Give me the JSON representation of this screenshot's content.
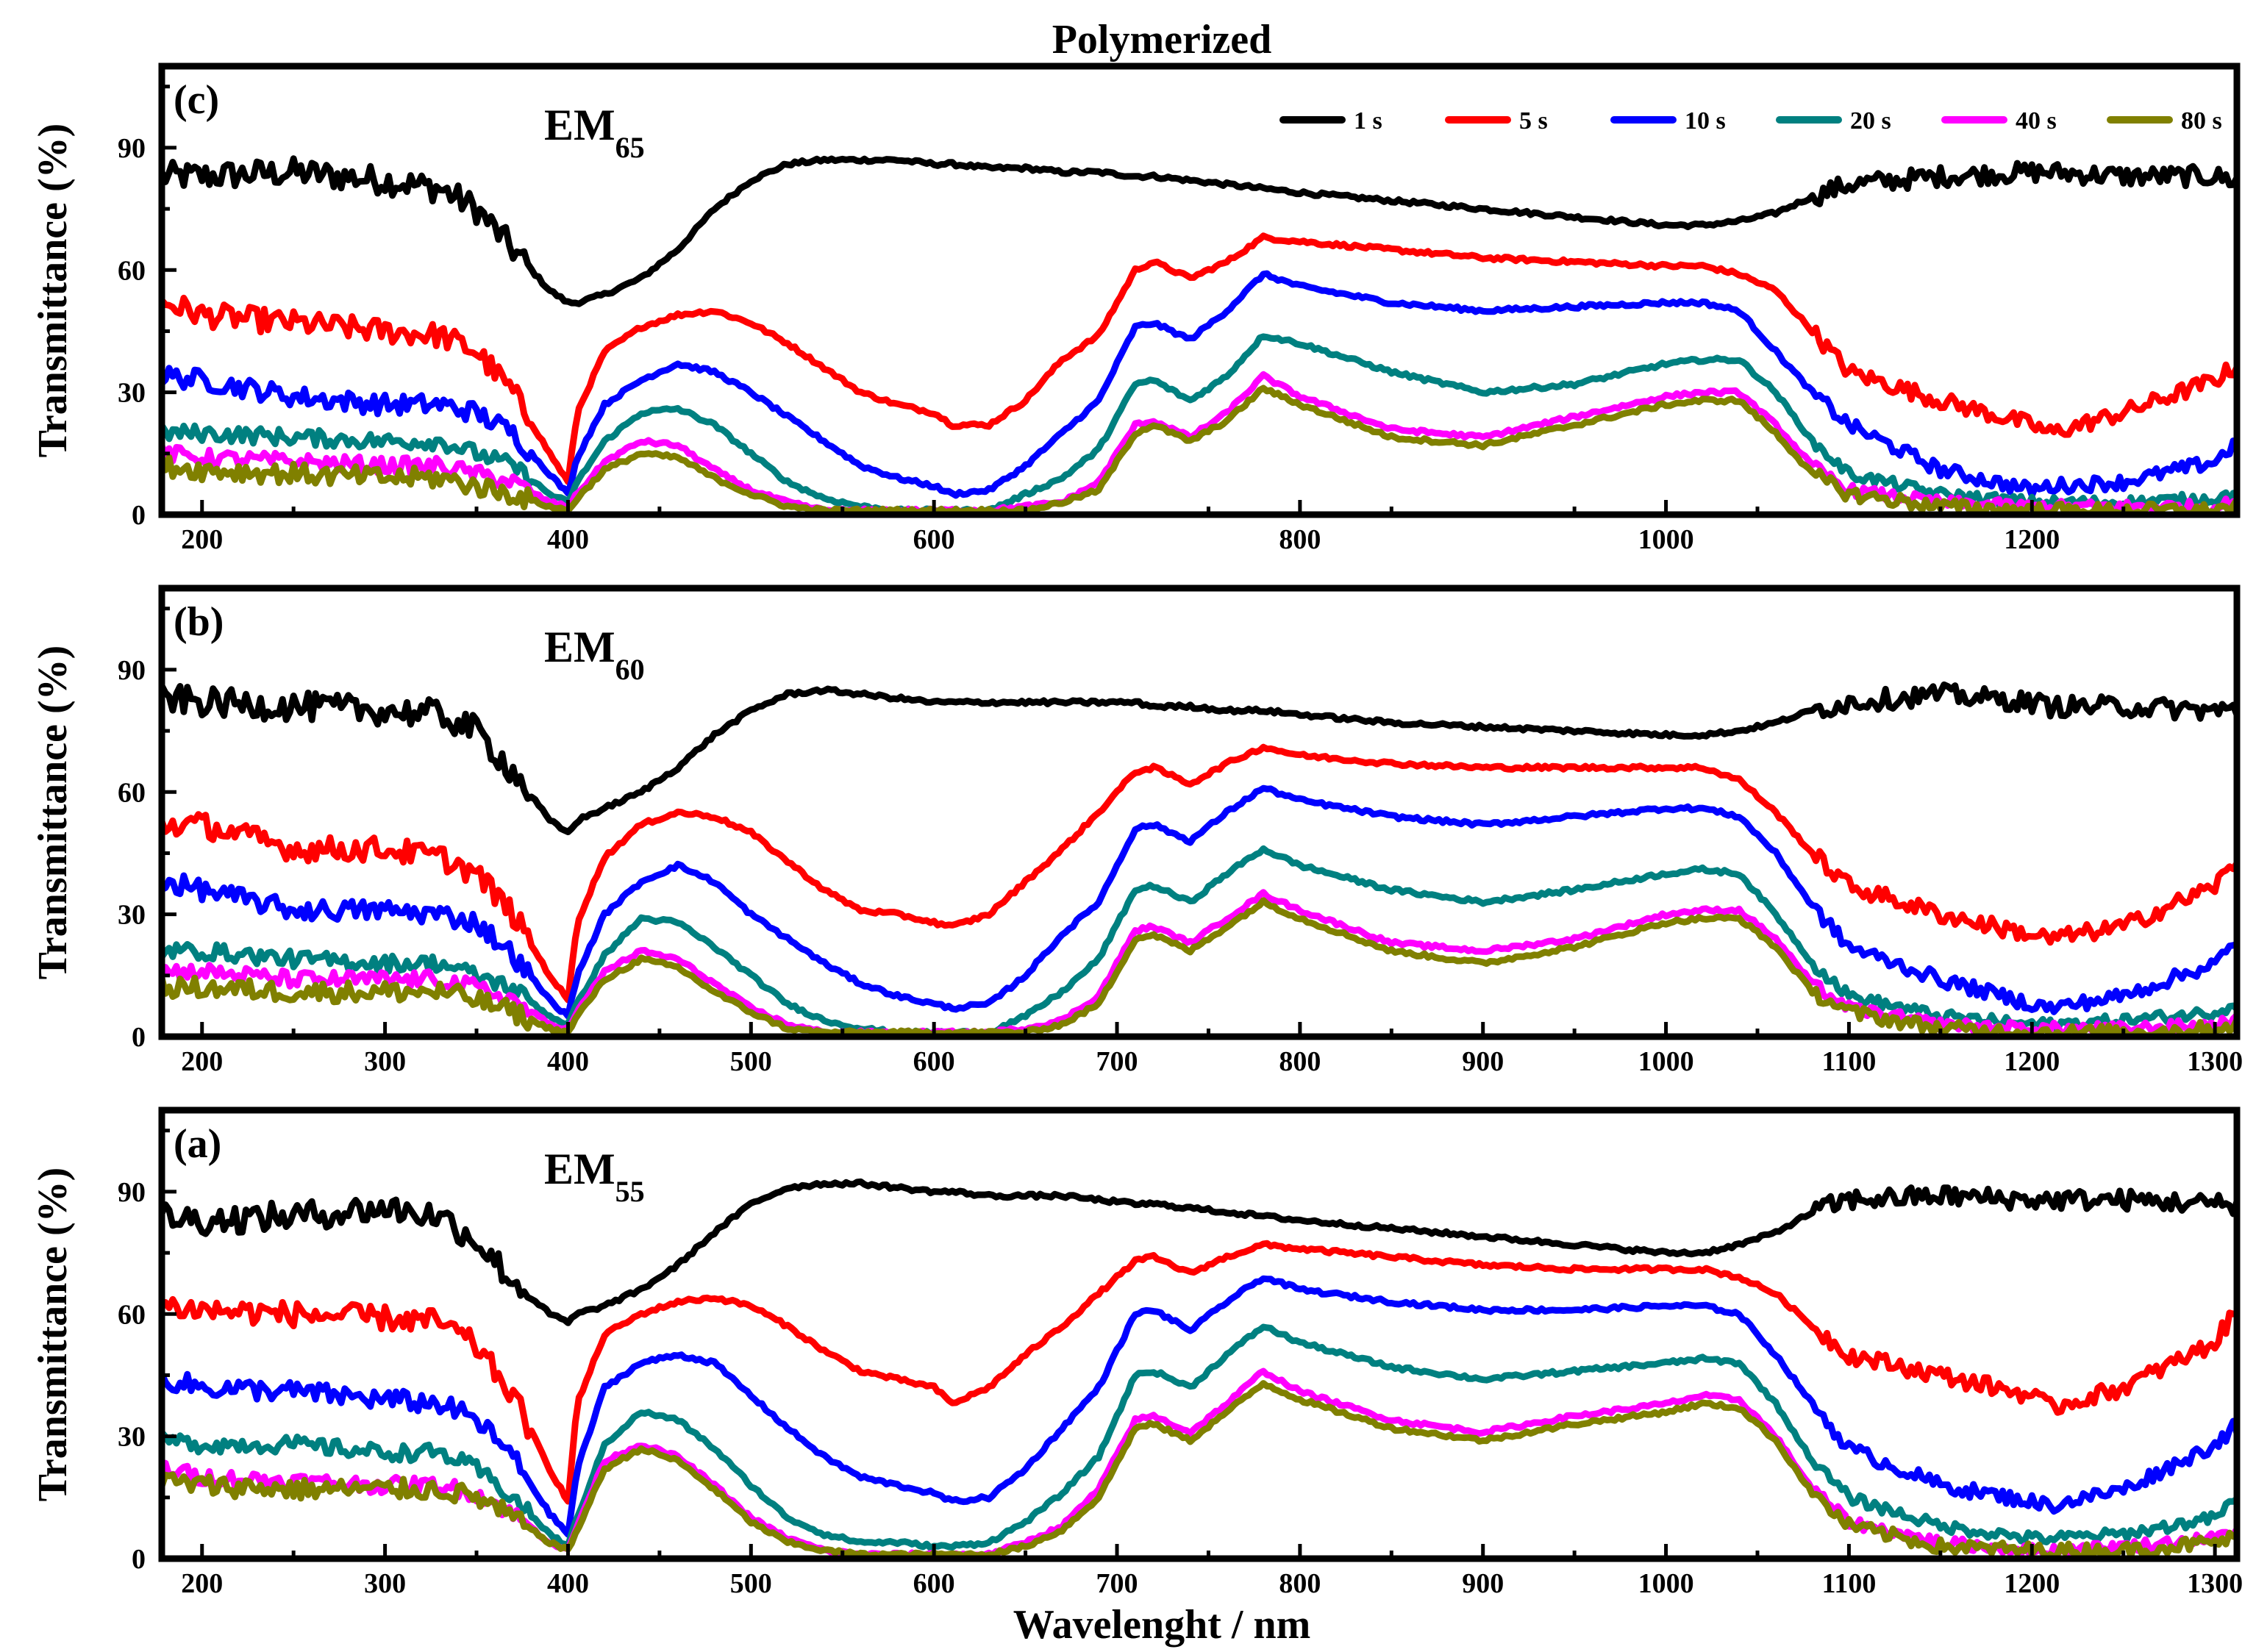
{
  "chart_data": {
    "type": "line",
    "title": "Polymerized",
    "xlabel": "Wavelenght / nm",
    "ylabel": "Transmittance (%)",
    "xlim": [
      178,
      1312
    ],
    "ylim": [
      0,
      110
    ],
    "yticks": [
      0,
      30,
      60,
      90
    ],
    "legend": {
      "placement": "top-right of top panel",
      "entries": [
        {
          "name": "1 s",
          "color": "#000000"
        },
        {
          "name": "5 s",
          "color": "#ff0000"
        },
        {
          "name": "10 s",
          "color": "#0000ff"
        },
        {
          "name": "20 s",
          "color": "#008080"
        },
        {
          "name": "40 s",
          "color": "#ff00ff"
        },
        {
          "name": "80 s",
          "color": "#808000"
        }
      ]
    },
    "x": [
      180,
      200,
      250,
      300,
      330,
      350,
      370,
      390,
      400,
      405,
      420,
      440,
      460,
      480,
      500,
      520,
      540,
      560,
      580,
      600,
      610,
      630,
      650,
      670,
      690,
      710,
      720,
      740,
      760,
      780,
      800,
      850,
      900,
      950,
      1000,
      1020,
      1040,
      1060,
      1080,
      1100,
      1150,
      1200,
      1210,
      1250,
      1300,
      1310
    ],
    "panels": [
      {
        "label": "(c)",
        "sample": {
          "base": "EM",
          "sub": "65"
        },
        "xticks": [
          200,
          400,
          600,
          800,
          1000,
          1200
        ],
        "series": [
          {
            "name": "1 s",
            "noise": 3.5,
            "values": [
              83,
              83,
              84,
              82,
              80,
              75,
              65,
              55,
              52,
              52,
              54,
              58,
              65,
              75,
              82,
              86,
              87,
              87,
              87,
              86,
              86,
              85,
              85,
              84,
              84,
              83,
              83,
              82,
              81,
              80,
              79,
              77,
              75,
              73,
              71,
              71,
              72,
              74,
              78,
              81,
              83,
              84,
              84,
              83,
              83,
              82
            ]
          },
          {
            "name": "5 s",
            "noise": 3.0,
            "values": [
              52,
              49,
              47,
              45,
              44,
              40,
              30,
              15,
              8,
              25,
              40,
              46,
              49,
              50,
              47,
              42,
              36,
              30,
              27,
              25,
              22,
              22,
              28,
              38,
              44,
              60,
              62,
              58,
              62,
              68,
              67,
              65,
              63,
              62,
              61,
              61,
              59,
              55,
              45,
              35,
              28,
              22,
              20,
              25,
              33,
              36
            ]
          },
          {
            "name": "10 s",
            "noise": 2.5,
            "values": [
              34,
              33,
              29,
              27,
              27,
              25,
              20,
              10,
              5,
              14,
              27,
              33,
              37,
              35,
              30,
              24,
              18,
              12,
              9,
              7,
              5,
              6,
              12,
              20,
              28,
              46,
              47,
              43,
              50,
              59,
              56,
              52,
              50,
              51,
              52,
              52,
              50,
              40,
              30,
              22,
              11,
              6,
              7,
              8,
              13,
              17
            ]
          },
          {
            "name": "20 s",
            "noise": 2.0,
            "values": [
              20,
              20,
              19,
              18,
              18,
              15,
              12,
              5,
              3,
              8,
              18,
              25,
              26,
              22,
              15,
              8,
              4,
              2,
              1,
              1,
              1,
              1,
              5,
              9,
              16,
              32,
              33,
              28,
              34,
              44,
              42,
              35,
              30,
              32,
              37,
              38,
              38,
              30,
              18,
              10,
              5,
              3,
              3,
              3,
              4,
              5
            ]
          },
          {
            "name": "40 s",
            "noise": 2.0,
            "values": [
              15,
              14,
              13,
              12,
              12,
              10,
              8,
              3,
              2,
              5,
              13,
              18,
              17,
              11,
              6,
              3,
              1,
              1,
              1,
              1,
              1,
              1,
              2,
              3,
              8,
              22,
              23,
              19,
              25,
              34,
              29,
              21,
              19,
              24,
              29,
              30,
              30,
              22,
              12,
              6,
              3,
              2,
              2,
              2,
              2,
              3
            ]
          },
          {
            "name": "80 s",
            "noise": 2.5,
            "values": [
              12,
              11,
              10,
              9,
              9,
              7,
              5,
              2,
              1,
              4,
              11,
              15,
              14,
              9,
              5,
              2,
              1,
              1,
              1,
              1,
              1,
              1,
              1,
              3,
              6,
              20,
              22,
              18,
              23,
              31,
              27,
              19,
              17,
              22,
              27,
              28,
              28,
              20,
              10,
              5,
              2,
              1,
              1,
              1,
              1,
              2
            ]
          }
        ]
      },
      {
        "label": "(b)",
        "sample": {
          "base": "EM",
          "sub": "60"
        },
        "xticks": [
          200,
          300,
          400,
          500,
          600,
          700,
          800,
          900,
          1000,
          1100,
          1200,
          1300
        ],
        "series": [
          {
            "name": "1 s",
            "noise": 3.5,
            "values": [
              83,
              82,
              81,
              80,
              79,
              75,
              65,
              53,
              50,
              53,
              56,
              60,
              66,
              74,
              80,
              84,
              85,
              84,
              83,
              82,
              82,
              82,
              82,
              82,
              82,
              82,
              81,
              81,
              80,
              80,
              79,
              77,
              76,
              75,
              74,
              74,
              75,
              77,
              80,
              82,
              84,
              82,
              81,
              81,
              80,
              80
            ]
          },
          {
            "name": "5 s",
            "noise": 3.0,
            "values": [
              52,
              52,
              46,
              46,
              44,
              40,
              30,
              15,
              9,
              28,
              44,
              52,
              55,
              54,
              50,
              43,
              36,
              31,
              30,
              28,
              27,
              30,
              38,
              46,
              55,
              65,
              66,
              62,
              67,
              71,
              69,
              67,
              66,
              66,
              66,
              66,
              63,
              55,
              45,
              37,
              30,
              25,
              24,
              27,
              37,
              42
            ]
          },
          {
            "name": "10 s",
            "noise": 2.5,
            "values": [
              38,
              36,
              31,
              31,
              30,
              28,
              20,
              9,
              5,
              15,
              30,
              38,
              42,
              38,
              30,
              24,
              18,
              13,
              10,
              8,
              7,
              8,
              15,
              25,
              33,
              51,
              52,
              48,
              55,
              61,
              58,
              54,
              52,
              54,
              56,
              56,
              54,
              45,
              32,
              22,
              14,
              8,
              7,
              10,
              18,
              22
            ]
          },
          {
            "name": "20 s",
            "noise": 2.0,
            "values": [
              21,
              21,
              19,
              18,
              18,
              15,
              12,
              5,
              3,
              8,
              20,
              29,
              28,
              22,
              15,
              8,
              4,
              2,
              1,
              1,
              1,
              1,
              5,
              11,
              19,
              36,
              37,
              33,
              40,
              46,
              42,
              36,
              33,
              36,
              40,
              41,
              40,
              30,
              18,
              10,
              5,
              3,
              3,
              4,
              6,
              8
            ]
          },
          {
            "name": "40 s",
            "noise": 2.0,
            "values": [
              16,
              16,
              14,
              14,
              14,
              12,
              9,
              3,
              2,
              6,
              16,
              21,
              19,
              13,
              7,
              3,
              1,
              1,
              1,
              1,
              1,
              1,
              2,
              4,
              10,
              26,
              27,
              23,
              29,
              35,
              31,
              23,
              21,
              24,
              30,
              31,
              31,
              24,
              13,
              7,
              3,
              2,
              2,
              2,
              3,
              4
            ]
          },
          {
            "name": "80 s",
            "noise": 2.5,
            "values": [
              12,
              12,
              11,
              11,
              11,
              9,
              6,
              2,
              1,
              5,
              14,
              19,
              17,
              11,
              6,
              2,
              1,
              1,
              1,
              1,
              1,
              1,
              1,
              3,
              8,
              24,
              25,
              21,
              27,
              33,
              29,
              21,
              18,
              22,
              28,
              29,
              29,
              22,
              11,
              6,
              2,
              1,
              1,
              1,
              2,
              3
            ]
          }
        ]
      },
      {
        "label": "(a)",
        "sample": {
          "base": "EM",
          "sub": "55"
        },
        "xticks": [
          200,
          300,
          400,
          500,
          600,
          700,
          800,
          900,
          1000,
          1100,
          1200,
          1300
        ],
        "series": [
          {
            "name": "1 s",
            "noise": 3.5,
            "values": [
              84,
              83,
              84,
              86,
              84,
              78,
              68,
              60,
              58,
              60,
              62,
              66,
              72,
              80,
              87,
              91,
              92,
              92,
              91,
              90,
              90,
              89,
              89,
              89,
              88,
              87,
              87,
              86,
              85,
              84,
              83,
              81,
              79,
              77,
              75,
              75,
              77,
              80,
              85,
              88,
              89,
              88,
              88,
              88,
              87,
              87
            ]
          },
          {
            "name": "5 s",
            "noise": 3.0,
            "values": [
              62,
              61,
              60,
              59,
              58,
              52,
              40,
              22,
              14,
              38,
              55,
              60,
              63,
              64,
              62,
              57,
              51,
              46,
              44,
              42,
              38,
              42,
              50,
              57,
              65,
              73,
              74,
              70,
              74,
              77,
              76,
              74,
              72,
              71,
              71,
              71,
              69,
              65,
              57,
              50,
              45,
              40,
              37,
              42,
              53,
              60
            ]
          },
          {
            "name": "10 s",
            "noise": 2.5,
            "values": [
              44,
              42,
              41,
              39,
              38,
              34,
              25,
              11,
              6,
              22,
              42,
              48,
              50,
              48,
              40,
              32,
              25,
              20,
              18,
              16,
              14,
              15,
              22,
              32,
              42,
              60,
              61,
              56,
              63,
              69,
              66,
              63,
              61,
              61,
              62,
              62,
              60,
              50,
              38,
              27,
              18,
              14,
              13,
              17,
              28,
              32
            ]
          },
          {
            "name": "20 s",
            "noise": 2.0,
            "values": [
              29,
              28,
              28,
              26,
              26,
              22,
              15,
              6,
              3,
              10,
              28,
              36,
              34,
              27,
              18,
              10,
              6,
              4,
              4,
              3,
              3,
              4,
              9,
              16,
              25,
              45,
              46,
              42,
              50,
              57,
              53,
              47,
              44,
              46,
              48,
              49,
              48,
              38,
              24,
              15,
              8,
              5,
              5,
              6,
              10,
              14
            ]
          },
          {
            "name": "40 s",
            "noise": 2.0,
            "values": [
              22,
              20,
              19,
              18,
              18,
              16,
              11,
              4,
              2,
              8,
              24,
              28,
              25,
              18,
              10,
              5,
              2,
              1,
              1,
              1,
              1,
              1,
              4,
              8,
              17,
              34,
              35,
              31,
              38,
              46,
              41,
              34,
              31,
              35,
              38,
              40,
              39,
              30,
              17,
              9,
              4,
              2,
              2,
              3,
              5,
              7
            ]
          },
          {
            "name": "80 s",
            "noise": 2.5,
            "values": [
              19,
              18,
              17,
              17,
              17,
              15,
              10,
              4,
              2,
              7,
              22,
              27,
              24,
              17,
              9,
              4,
              2,
              1,
              1,
              1,
              1,
              1,
              3,
              7,
              15,
              32,
              33,
              29,
              36,
              43,
              39,
              32,
              29,
              33,
              36,
              38,
              37,
              29,
              16,
              8,
              3,
              2,
              2,
              2,
              4,
              5
            ]
          }
        ]
      }
    ]
  }
}
